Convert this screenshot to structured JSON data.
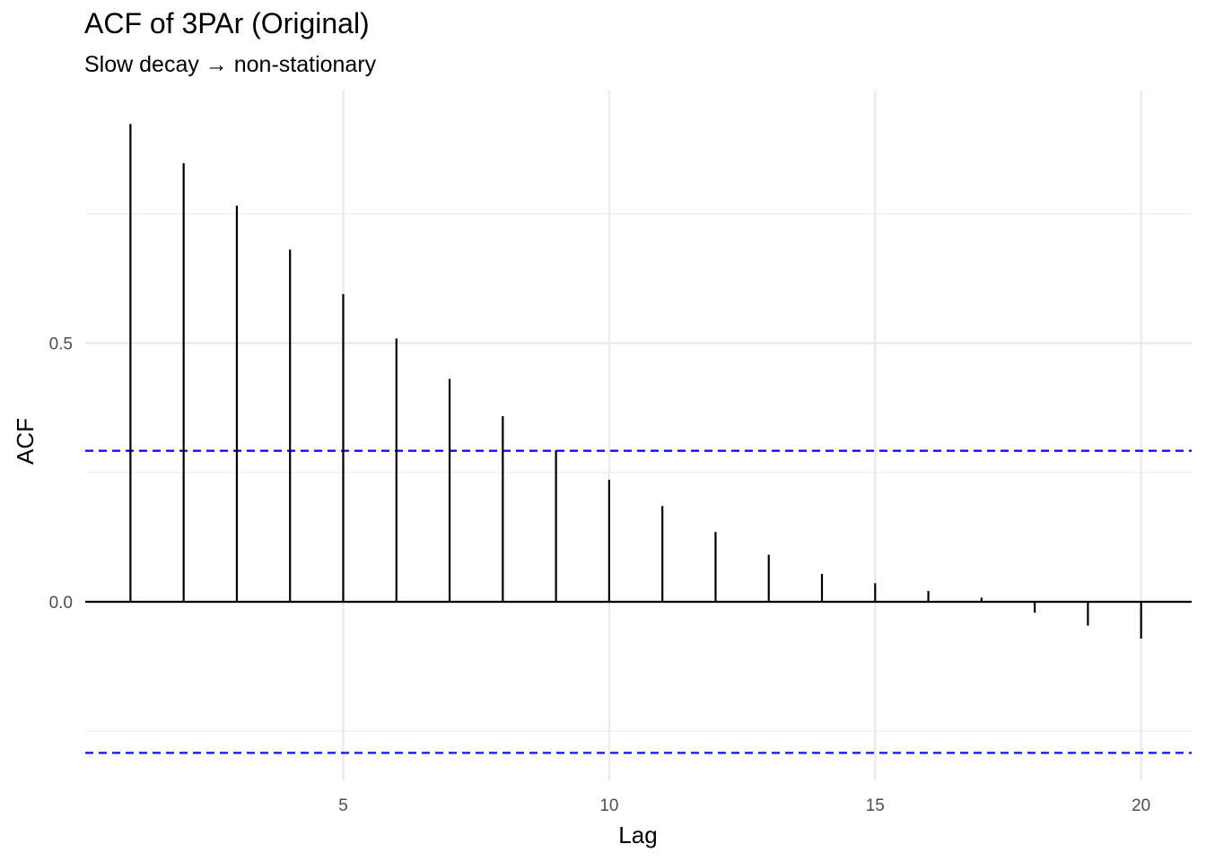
{
  "chart_data": {
    "type": "bar",
    "title": "ACF of 3PAr (Original)",
    "subtitle": "Slow decay → non-stationary",
    "xlabel": "Lag",
    "ylabel": "ACF",
    "x": [
      1,
      2,
      3,
      4,
      5,
      6,
      7,
      8,
      9,
      10,
      11,
      12,
      13,
      14,
      15,
      16,
      17,
      18,
      19,
      20
    ],
    "values": [
      0.924,
      0.848,
      0.766,
      0.681,
      0.595,
      0.509,
      0.431,
      0.359,
      0.293,
      0.236,
      0.185,
      0.135,
      0.091,
      0.054,
      0.036,
      0.021,
      0.008,
      -0.021,
      -0.046,
      -0.071
    ],
    "xlim": [
      0.15,
      20.95
    ],
    "ylim": [
      -0.345,
      0.99
    ],
    "xticks": [
      5,
      10,
      15,
      20
    ],
    "xtick_labels": [
      "5",
      "10",
      "15",
      "20"
    ],
    "yticks": [
      0.0,
      0.5
    ],
    "ytick_labels": [
      "0.0",
      "0.5"
    ],
    "y_minor_gridlines": [
      -0.25,
      0.25,
      0.75
    ],
    "confidence_band": [
      0.292,
      -0.292
    ],
    "colors": {
      "bars": "#000000",
      "confidence_lines": "#0000ff",
      "grid": "#ebebeb",
      "zero_line": "#000000"
    },
    "grid": true
  }
}
